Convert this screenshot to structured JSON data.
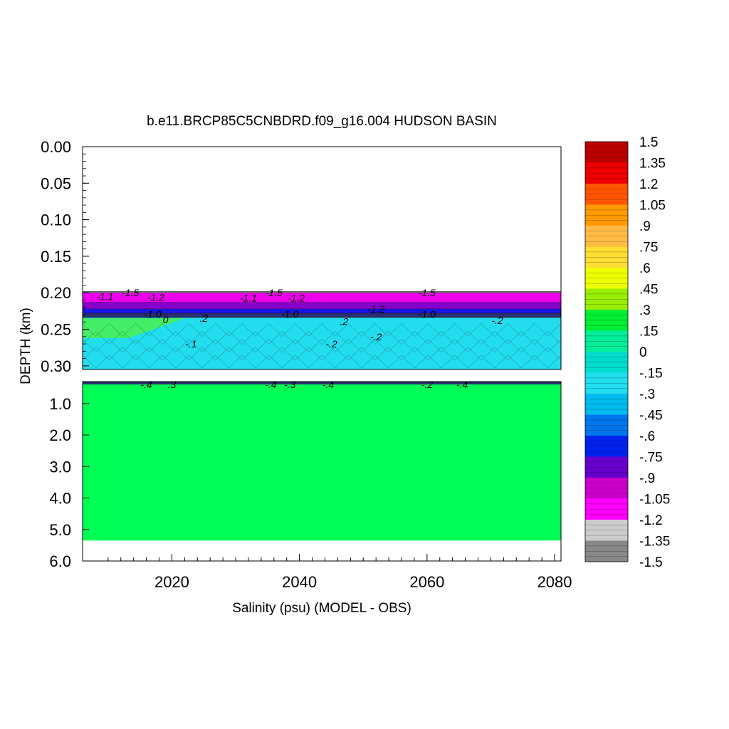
{
  "chart_data": {
    "type": "heatmap",
    "title": "b.e11.BRCP85C5CNBDRD.f09_g16.004 HUDSON BASIN",
    "xlabel": "Salinity (psu) (MODEL - OBS)",
    "ylabel": "DEPTH (km)",
    "xlim": [
      2006,
      2081
    ],
    "x_ticks": [
      "2020",
      "2040",
      "2060",
      "2080"
    ],
    "panels": [
      {
        "name": "upper",
        "ylim": [
          0.0,
          0.305
        ],
        "y_ticks": [
          "0.00",
          "0.05",
          "0.10",
          "0.15",
          "0.20",
          "0.25",
          "0.30"
        ],
        "bottom_depth_km": 0.198,
        "layers": [
          {
            "depth": [
              0.198,
              0.2
            ],
            "color": "#777777"
          },
          {
            "depth": [
              0.2,
              0.213
            ],
            "color": "#ee00ee"
          },
          {
            "depth": [
              0.213,
              0.222
            ],
            "color": "#8800cc"
          },
          {
            "depth": [
              0.222,
              0.228
            ],
            "color": "#1a14e8"
          },
          {
            "depth": [
              0.228,
              0.234
            ],
            "color": "#2b2f6e"
          },
          {
            "depth": [
              0.234,
              0.305
            ],
            "color": "#22ddee"
          }
        ],
        "green_patch": {
          "x": [
            2006,
            2022
          ],
          "depth": [
            0.235,
            0.262
          ],
          "color": "#44ee66"
        },
        "contour_labels": [
          {
            "x": 2009.5,
            "depth": 0.205,
            "text": "-1.1"
          },
          {
            "x": 2013.5,
            "depth": 0.2,
            "text": "-1.5"
          },
          {
            "x": 2017.5,
            "depth": 0.206,
            "text": "-1.2"
          },
          {
            "x": 2017.0,
            "depth": 0.229,
            "text": "-1.0"
          },
          {
            "x": 2019.0,
            "depth": 0.237,
            "text": "0"
          },
          {
            "x": 2025.0,
            "depth": 0.235,
            "text": ".2"
          },
          {
            "x": 2023.0,
            "depth": 0.27,
            "text": "-.1"
          },
          {
            "x": 2036.0,
            "depth": 0.2,
            "text": "-1.5"
          },
          {
            "x": 2032.0,
            "depth": 0.207,
            "text": "-1.1"
          },
          {
            "x": 2039.5,
            "depth": 0.207,
            "text": "-1.2"
          },
          {
            "x": 2038.5,
            "depth": 0.229,
            "text": "-1.0"
          },
          {
            "x": 2045.0,
            "depth": 0.27,
            "text": "-.2"
          },
          {
            "x": 2047.0,
            "depth": 0.239,
            "text": ".2"
          },
          {
            "x": 2052.0,
            "depth": 0.222,
            "text": "-1.2"
          },
          {
            "x": 2060.0,
            "depth": 0.2,
            "text": "-1.5"
          },
          {
            "x": 2060.0,
            "depth": 0.229,
            "text": "-1.0"
          },
          {
            "x": 2052.0,
            "depth": 0.26,
            "text": "-.2"
          },
          {
            "x": 2071.0,
            "depth": 0.238,
            "text": "-.2"
          }
        ]
      },
      {
        "name": "lower",
        "ylim": [
          0.305,
          6.0
        ],
        "y_ticks": [
          "1.0",
          "2.0",
          "3.0",
          "4.0",
          "5.0",
          "6.0"
        ],
        "bottom_depth_km": 5.35,
        "fill_color": "#00ff55",
        "contour_labels": [
          {
            "x": 2016.0,
            "depth": 0.4,
            "text": "-.4"
          },
          {
            "x": 2020.0,
            "depth": 0.4,
            "text": ".3"
          },
          {
            "x": 2035.5,
            "depth": 0.4,
            "text": "-.4"
          },
          {
            "x": 2038.5,
            "depth": 0.4,
            "text": "-.3"
          },
          {
            "x": 2044.5,
            "depth": 0.4,
            "text": "-.4"
          },
          {
            "x": 2060.0,
            "depth": 0.4,
            "text": "-.2"
          },
          {
            "x": 2065.5,
            "depth": 0.4,
            "text": "-.4"
          }
        ]
      }
    ],
    "colorbar": {
      "levels": [
        "1.5",
        "1.35",
        "1.2",
        "1.05",
        ".9",
        ".75",
        ".6",
        ".45",
        ".3",
        ".15",
        "0",
        "-.15",
        "-.3",
        "-.45",
        "-.6",
        "-.75",
        "-.9",
        "-1.05",
        "-1.2",
        "-1.35",
        "-1.5"
      ],
      "colors": [
        "#bb0000",
        "#ee0000",
        "#ff5500",
        "#ff9900",
        "#ffbb44",
        "#ffdd33",
        "#eeff00",
        "#99ee00",
        "#00ee33",
        "#00ee99",
        "#00ddcc",
        "#22ddee",
        "#00bbee",
        "#0077ee",
        "#0022ee",
        "#6600cc",
        "#cc00cc",
        "#ff00ff",
        "#cccccc",
        "#888888"
      ]
    }
  }
}
